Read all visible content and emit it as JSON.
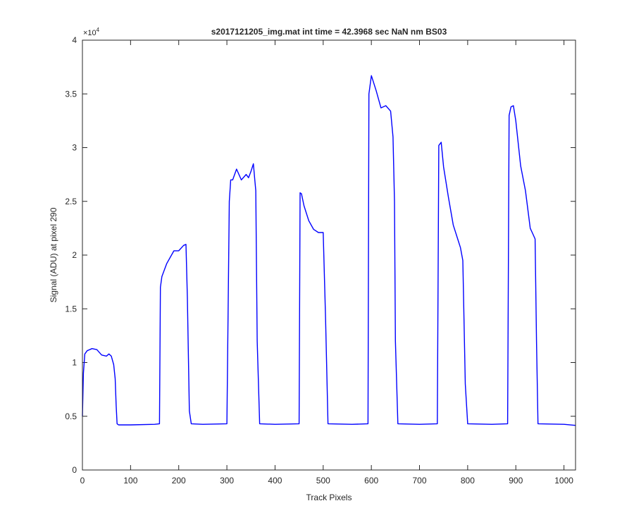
{
  "chart_data": {
    "type": "line",
    "title": "s2017121205_img.mat int time = 42.3968 sec  NaN nm BS03",
    "xlabel": "Track Pixels",
    "ylabel": "Signal (ADU) at pixel 290",
    "exponent_label": "×10",
    "exponent_power": "4",
    "xlim": [
      0,
      1024
    ],
    "ylim": [
      0,
      40000
    ],
    "x_ticks": [
      0,
      100,
      200,
      300,
      400,
      500,
      600,
      700,
      800,
      900,
      1000
    ],
    "x_tick_labels": [
      "0",
      "100",
      "200",
      "300",
      "400",
      "500",
      "600",
      "700",
      "800",
      "900",
      "1000"
    ],
    "y_ticks": [
      0,
      5000,
      10000,
      15000,
      20000,
      25000,
      30000,
      35000,
      40000
    ],
    "y_tick_labels": [
      "0",
      "0.5",
      "1",
      "1.5",
      "2",
      "2.5",
      "3",
      "3.5",
      "4"
    ],
    "grid": false,
    "line_color": "#0000ff",
    "series": [
      {
        "x": [
          0,
          2,
          5,
          10,
          20,
          30,
          40,
          50,
          55,
          60,
          65,
          68,
          70,
          72,
          75,
          100,
          150,
          160,
          162,
          165,
          175,
          190,
          200,
          210,
          215,
          218,
          222,
          226,
          250,
          300,
          305,
          308,
          312,
          320,
          330,
          340,
          345,
          350,
          355,
          358,
          360,
          363,
          368,
          400,
          450,
          452,
          455,
          460,
          470,
          480,
          490,
          500,
          505,
          510,
          560,
          593,
          595,
          600,
          610,
          620,
          630,
          640,
          645,
          648,
          650,
          655,
          700,
          737,
          740,
          745,
          750,
          760,
          770,
          780,
          785,
          790,
          795,
          800,
          850,
          883,
          886,
          890,
          895,
          900,
          910,
          920,
          930,
          935,
          940,
          943,
          946,
          1000,
          1024
        ],
        "y": [
          5000,
          9000,
          10800,
          11100,
          11300,
          11200,
          10700,
          10600,
          10800,
          10600,
          9800,
          8500,
          6000,
          4300,
          4200,
          4200,
          4250,
          4300,
          17000,
          18000,
          19200,
          20400,
          20400,
          20900,
          21000,
          16000,
          5500,
          4300,
          4250,
          4300,
          25000,
          27000,
          27000,
          28000,
          27000,
          27500,
          27200,
          27800,
          28500,
          27000,
          26000,
          12000,
          4300,
          4250,
          4300,
          25800,
          25700,
          24600,
          23200,
          22400,
          22100,
          22100,
          14000,
          4300,
          4250,
          4300,
          35000,
          36700,
          35300,
          33700,
          33900,
          33400,
          31000,
          25000,
          12000,
          4300,
          4250,
          4300,
          30200,
          30500,
          28200,
          25400,
          22800,
          21400,
          20700,
          19500,
          8000,
          4300,
          4250,
          4300,
          33000,
          33800,
          33900,
          32500,
          28300,
          26000,
          22500,
          22000,
          21500,
          12000,
          4300,
          4250,
          4150
        ]
      }
    ]
  }
}
